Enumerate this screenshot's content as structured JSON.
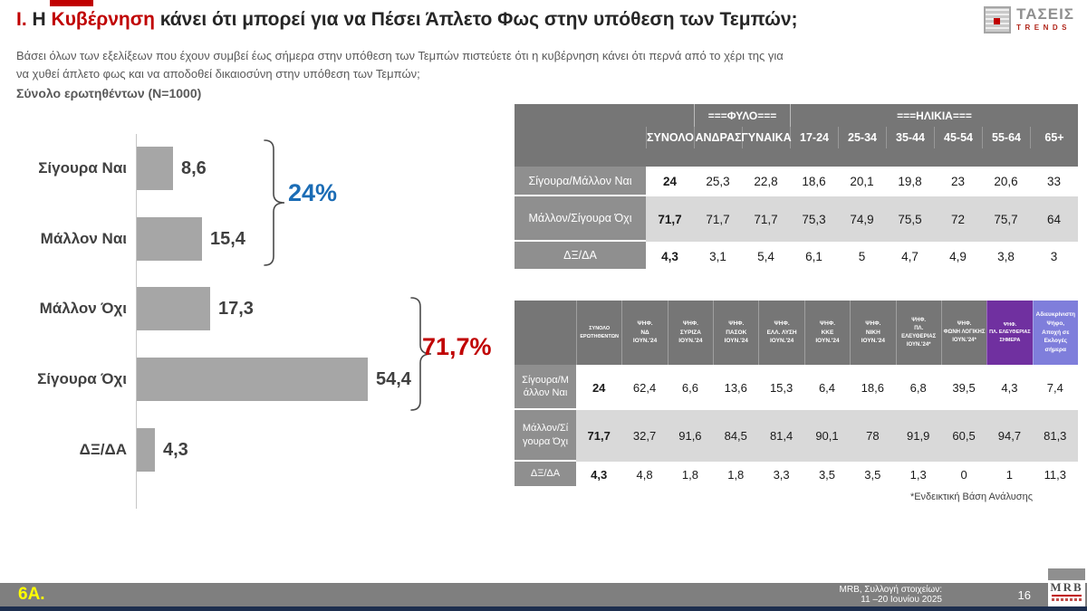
{
  "colors": {
    "accent_red": "#c00000",
    "yes_blue": "#1b6cb5",
    "bar_grey": "#a6a6a6",
    "header_grey": "#767676",
    "stripe_grey": "#d9d9d9",
    "purple_dark": "#7030a0",
    "purple_light": "#7f7edb"
  },
  "header": {
    "title_prefix": "I.",
    "title_article": "Η",
    "title_highlight": "Κυβέρνηση",
    "title_rest": "κάνει ότι μπορεί για να Πέσει Άπλετο Φως στην υπόθεση των Τεμπών;",
    "subtitle_line1": "Βάσει όλων των εξελίξεων που έχουν συμβεί έως σήμερα στην υπόθεση των Τεμπών πιστεύετε ότι η κυβέρνηση κάνει ότι περνά από το χέρι της για",
    "subtitle_line2": "να χυθεί άπλετο φως και να αποδοθεί δικαιοσύνη στην υπόθεση των Τεμπών;",
    "sample_note": "Σύνολο ερωτηθέντων (N=1000)",
    "logo_name": "ΤΑΣΕΙΣ",
    "logo_sub": "TRENDS"
  },
  "chart_data": {
    "type": "bar",
    "orientation": "horizontal",
    "categories": [
      "Σίγουρα Ναι",
      "Μάλλον Ναι",
      "Μάλλον Όχι",
      "Σίγουρα Όχι",
      "ΔΞ/ΔΑ"
    ],
    "values": [
      8.6,
      15.4,
      17.3,
      54.4,
      4.3
    ],
    "value_labels": [
      "8,6",
      "15,4",
      "17,3",
      "54,4",
      "4,3"
    ],
    "xlim": [
      0,
      60
    ],
    "grid": false,
    "bar_color": "#a6a6a6",
    "groups": [
      {
        "label": "24%",
        "covers": [
          "Σίγουρα Ναι",
          "Μάλλον Ναι"
        ],
        "color": "#1b6cb5"
      },
      {
        "label": "71,7%",
        "covers": [
          "Μάλλον Όχι",
          "Σίγουρα Όχι"
        ],
        "color": "#c00000"
      }
    ]
  },
  "table_demographics": {
    "group_headers": [
      {
        "label": "===ΦΥΛΟ===",
        "span": 2
      },
      {
        "label": "===ΗΛΙΚΙΑ===",
        "span": 6
      }
    ],
    "columns": [
      "ΣΥΝΟΛΟ",
      "ΑΝΔΡΑΣ",
      "ΓΥΝΑΙΚΑ",
      "17-24",
      "25-34",
      "35-44",
      "45-54",
      "55-64",
      "65+"
    ],
    "rows": [
      {
        "label": "Σίγουρα/Μάλλον Ναι",
        "values": [
          "24",
          "25,3",
          "22,8",
          "18,6",
          "20,1",
          "19,8",
          "23",
          "20,6",
          "33"
        ]
      },
      {
        "label": "Μάλλον/Σίγουρα Όχι",
        "values": [
          "71,7",
          "71,7",
          "71,7",
          "75,3",
          "74,9",
          "75,5",
          "72",
          "75,7",
          "64"
        ]
      },
      {
        "label": "ΔΞ/ΔΑ",
        "values": [
          "4,3",
          "3,1",
          "5,4",
          "6,1",
          "5",
          "4,7",
          "4,9",
          "3,8",
          "3"
        ]
      }
    ]
  },
  "table_party": {
    "columns": [
      {
        "label": "ΣΥΝΟΛΟ\nΕΡΩΤΗΘΕΝΤΩΝ",
        "bg": "#767676",
        "font": 5.5
      },
      {
        "label": "ΨΗΦ.\nΝΔ\nΙΟΥΝ.'24",
        "bg": "#767676",
        "font": 6.5
      },
      {
        "label": "ΨΗΦ.\nΣΥΡΙΖΑ\nΙΟΥΝ.'24",
        "bg": "#767676",
        "font": 6.5
      },
      {
        "label": "ΨΗΦ.\nΠΑΣΟΚ\nΙΟΥΝ.'24",
        "bg": "#767676",
        "font": 6.5
      },
      {
        "label": "ΨΗΦ.\nΕΛΛ. ΛΥΣΗ\nΙΟΥΝ.'24",
        "bg": "#767676",
        "font": 6.5
      },
      {
        "label": "ΨΗΦ.\nΚΚΕ\nΙΟΥΝ.'24",
        "bg": "#767676",
        "font": 6.5
      },
      {
        "label": "ΨΗΦ.\nΝΙΚΗ\nΙΟΥΝ.'24",
        "bg": "#767676",
        "font": 6.5
      },
      {
        "label": "ΨΗΦ.\nΠΛ. ΕΛΕΥΘΕΡΙΑΣ\nΙΟΥΝ.'24*",
        "bg": "#767676",
        "font": 6
      },
      {
        "label": "ΨΗΦ.\nΦΩΝΗ ΛΟΓΙΚΗΣ\nΙΟΥΝ.'24*",
        "bg": "#767676",
        "font": 6
      },
      {
        "label": "ΨΗΦ.\nΠΛ. ΕΛΕΥΘΕΡΙΑΣ\nΣΗΜΕΡΑ",
        "bg": "#7030a0",
        "font": 5.5
      },
      {
        "label": "Αδιευκρίνιστη\nΨήφο,\nΑποχή σε\nΕκλογές σήμερα",
        "bg": "#7f7edb",
        "font": 6.5
      }
    ],
    "rows": [
      {
        "label": "Σίγουρα/Μ\nάλλον Ναι",
        "values": [
          "24",
          "62,4",
          "6,6",
          "13,6",
          "15,3",
          "6,4",
          "18,6",
          "6,8",
          "39,5",
          "4,3",
          "7,4"
        ]
      },
      {
        "label": "Μάλλον/Σί\nγουρα Όχι",
        "values": [
          "71,7",
          "32,7",
          "91,6",
          "84,5",
          "81,4",
          "90,1",
          "78",
          "91,9",
          "60,5",
          "94,7",
          "81,3"
        ]
      },
      {
        "label": "ΔΞ/ΔΑ",
        "values": [
          "4,3",
          "4,8",
          "1,8",
          "1,8",
          "3,3",
          "3,5",
          "3,5",
          "1,3",
          "0",
          "1",
          "11,3"
        ]
      }
    ],
    "footnote": "*Ενδεικτική Βάση Ανάλυσης"
  },
  "footer": {
    "slide_code": "6Α.",
    "source_line1": "MRB, Συλλογή στοιχείων:",
    "source_line2": "11 –20 Ιουνίου 2025",
    "page_number": "16",
    "logo_text": "MRB"
  }
}
